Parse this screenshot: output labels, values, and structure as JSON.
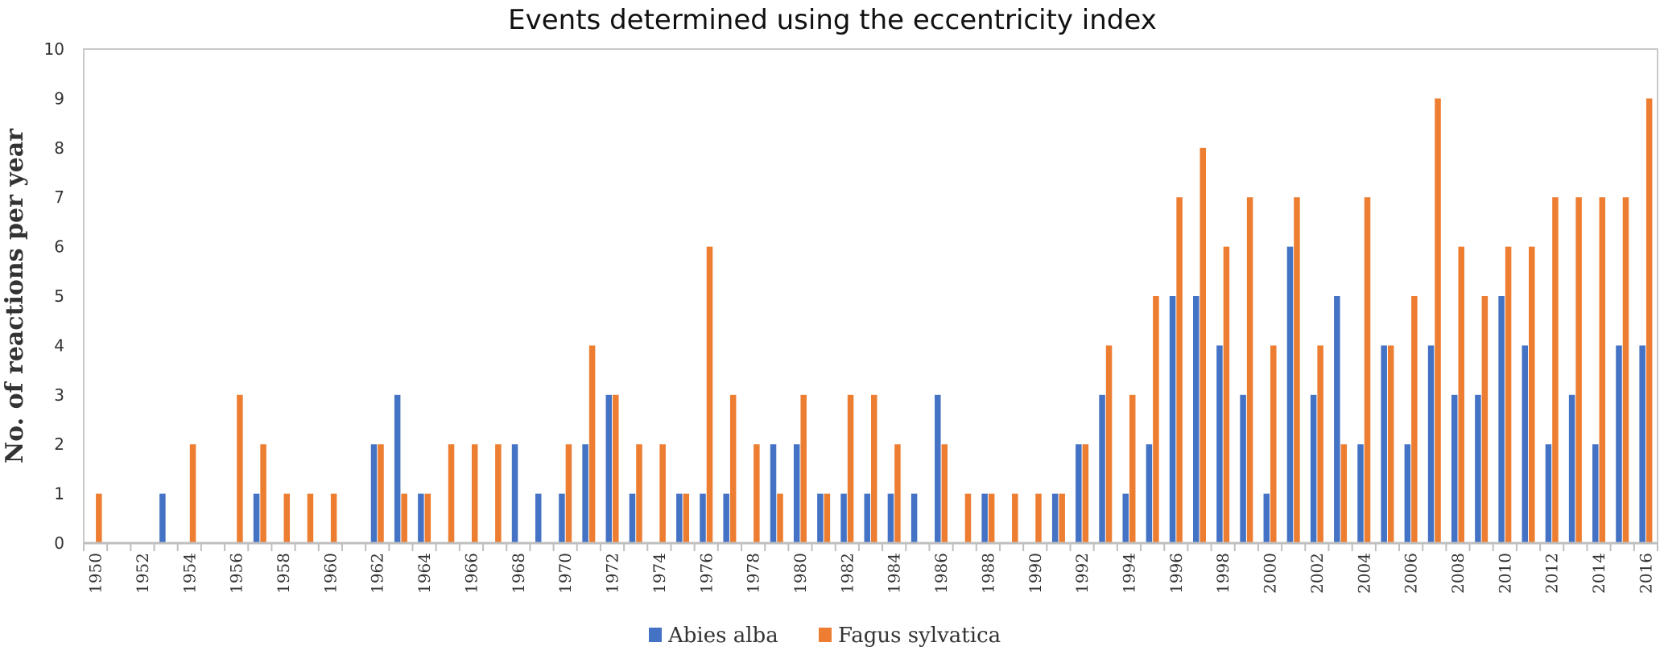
{
  "chart_data": {
    "type": "bar",
    "title": "Events determined using the eccentricity index",
    "xlabel": "",
    "ylabel": "No. of reactions per year",
    "ylim": [
      0,
      10
    ],
    "yticks": [
      "0",
      "1",
      "2",
      "3",
      "4",
      "5",
      "6",
      "7",
      "8",
      "9",
      "10"
    ],
    "grid": false,
    "legend_position": "bottom",
    "categories": [
      "1950",
      "1951",
      "1952",
      "1953",
      "1954",
      "1955",
      "1956",
      "1957",
      "1958",
      "1959",
      "1960",
      "1961",
      "1962",
      "1963",
      "1964",
      "1965",
      "1966",
      "1967",
      "1968",
      "1969",
      "1970",
      "1971",
      "1972",
      "1973",
      "1974",
      "1975",
      "1976",
      "1977",
      "1978",
      "1979",
      "1980",
      "1981",
      "1982",
      "1983",
      "1984",
      "1985",
      "1986",
      "1987",
      "1988",
      "1989",
      "1990",
      "1991",
      "1992",
      "1993",
      "1994",
      "1995",
      "1996",
      "1997",
      "1998",
      "1999",
      "2000",
      "2001",
      "2002",
      "2003",
      "2004",
      "2005",
      "2006",
      "2007",
      "2008",
      "2009",
      "2010",
      "2011",
      "2012",
      "2013",
      "2014",
      "2015",
      "2016"
    ],
    "xtick_labels": [
      "1950",
      "1952",
      "1954",
      "1956",
      "1958",
      "1960",
      "1962",
      "1964",
      "1966",
      "1968",
      "1970",
      "1972",
      "1974",
      "1976",
      "1978",
      "1980",
      "1982",
      "1984",
      "1986",
      "1988",
      "1990",
      "1992",
      "1994",
      "1996",
      "1998",
      "2000",
      "2002",
      "2004",
      "2006",
      "2008",
      "2010",
      "2012",
      "2014",
      "2016"
    ],
    "series": [
      {
        "name": "Abies alba",
        "color": "#4472C4",
        "values": [
          0,
          0,
          0,
          1,
          0,
          0,
          0,
          1,
          0,
          0,
          0,
          0,
          2,
          3,
          1,
          0,
          0,
          0,
          2,
          1,
          1,
          2,
          3,
          1,
          0,
          1,
          1,
          1,
          0,
          2,
          2,
          1,
          1,
          1,
          1,
          1,
          3,
          0,
          1,
          0,
          0,
          1,
          2,
          3,
          1,
          2,
          5,
          5,
          4,
          3,
          1,
          6,
          3,
          5,
          2,
          4,
          2,
          4,
          3,
          3,
          5,
          4,
          2,
          3,
          2,
          4,
          4
        ]
      },
      {
        "name": "Fagus sylvatica",
        "color": "#ED7D31",
        "values": [
          1,
          0,
          0,
          0,
          2,
          0,
          3,
          2,
          1,
          1,
          1,
          0,
          2,
          1,
          1,
          2,
          2,
          2,
          0,
          0,
          2,
          4,
          3,
          2,
          2,
          1,
          6,
          3,
          2,
          1,
          3,
          1,
          3,
          3,
          2,
          0,
          2,
          1,
          1,
          1,
          1,
          1,
          2,
          4,
          3,
          5,
          7,
          8,
          6,
          7,
          4,
          7,
          4,
          2,
          7,
          4,
          5,
          9,
          6,
          5,
          6,
          6,
          7,
          7,
          7,
          7,
          9
        ]
      }
    ]
  }
}
